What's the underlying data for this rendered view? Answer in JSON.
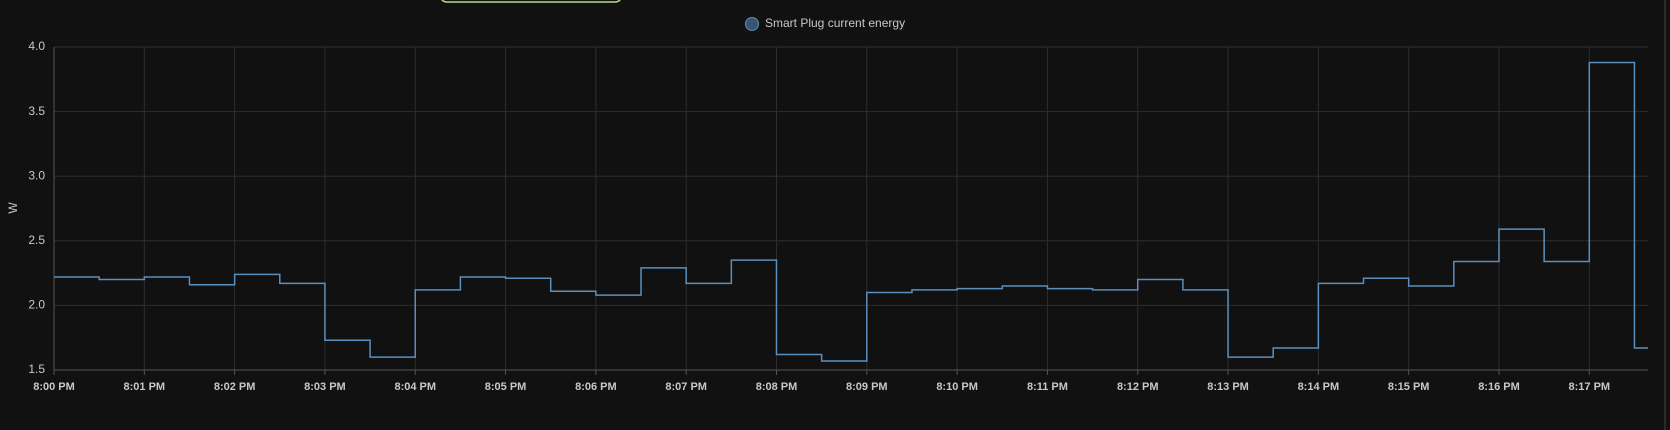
{
  "chart_data": {
    "type": "line",
    "step": true,
    "legend": "Smart Plug current energy",
    "ylabel": "W",
    "x": [
      0,
      0.5,
      1,
      1.5,
      2,
      2.5,
      3,
      3.5,
      4,
      4.5,
      5,
      5.5,
      6,
      6.5,
      7,
      7.5,
      8,
      8.5,
      9,
      9.5,
      10,
      10.5,
      11,
      11.5,
      12,
      12.5,
      13,
      13.5,
      14,
      14.5,
      15,
      15.5,
      16,
      16.5,
      17,
      17.5
    ],
    "series": [
      {
        "name": "Smart Plug current energy",
        "color": "#5b8fbd",
        "values": [
          2.22,
          2.2,
          2.22,
          2.16,
          2.24,
          2.17,
          1.73,
          1.6,
          2.12,
          2.22,
          2.21,
          2.11,
          2.08,
          2.29,
          2.17,
          2.35,
          1.62,
          1.57,
          2.1,
          2.12,
          2.13,
          2.15,
          2.13,
          2.12,
          2.2,
          2.12,
          1.6,
          1.67,
          2.17,
          2.21,
          2.15,
          2.34,
          2.59,
          2.34,
          3.88,
          1.67
        ]
      }
    ],
    "xlim": [
      0,
      17.65
    ],
    "xticks": [
      {
        "value": 0,
        "label": "8:00 PM"
      },
      {
        "value": 1,
        "label": "8:01 PM"
      },
      {
        "value": 2,
        "label": "8:02 PM"
      },
      {
        "value": 3,
        "label": "8:03 PM"
      },
      {
        "value": 4,
        "label": "8:04 PM"
      },
      {
        "value": 5,
        "label": "8:05 PM"
      },
      {
        "value": 6,
        "label": "8:06 PM"
      },
      {
        "value": 7,
        "label": "8:07 PM"
      },
      {
        "value": 8,
        "label": "8:08 PM"
      },
      {
        "value": 9,
        "label": "8:09 PM"
      },
      {
        "value": 10,
        "label": "8:10 PM"
      },
      {
        "value": 11,
        "label": "8:11 PM"
      },
      {
        "value": 12,
        "label": "8:12 PM"
      },
      {
        "value": 13,
        "label": "8:13 PM"
      },
      {
        "value": 14,
        "label": "8:14 PM"
      },
      {
        "value": 15,
        "label": "8:15 PM"
      },
      {
        "value": 16,
        "label": "8:16 PM"
      },
      {
        "value": 17,
        "label": "8:17 PM"
      }
    ],
    "ylim": [
      1.5,
      4.0
    ],
    "yticks": [
      1.5,
      {
        "value": 2,
        "label": "2.0"
      },
      2.5,
      {
        "value": 3,
        "label": "3.0"
      },
      3.5,
      {
        "value": 4,
        "label": "4.0"
      }
    ],
    "grid": true
  }
}
